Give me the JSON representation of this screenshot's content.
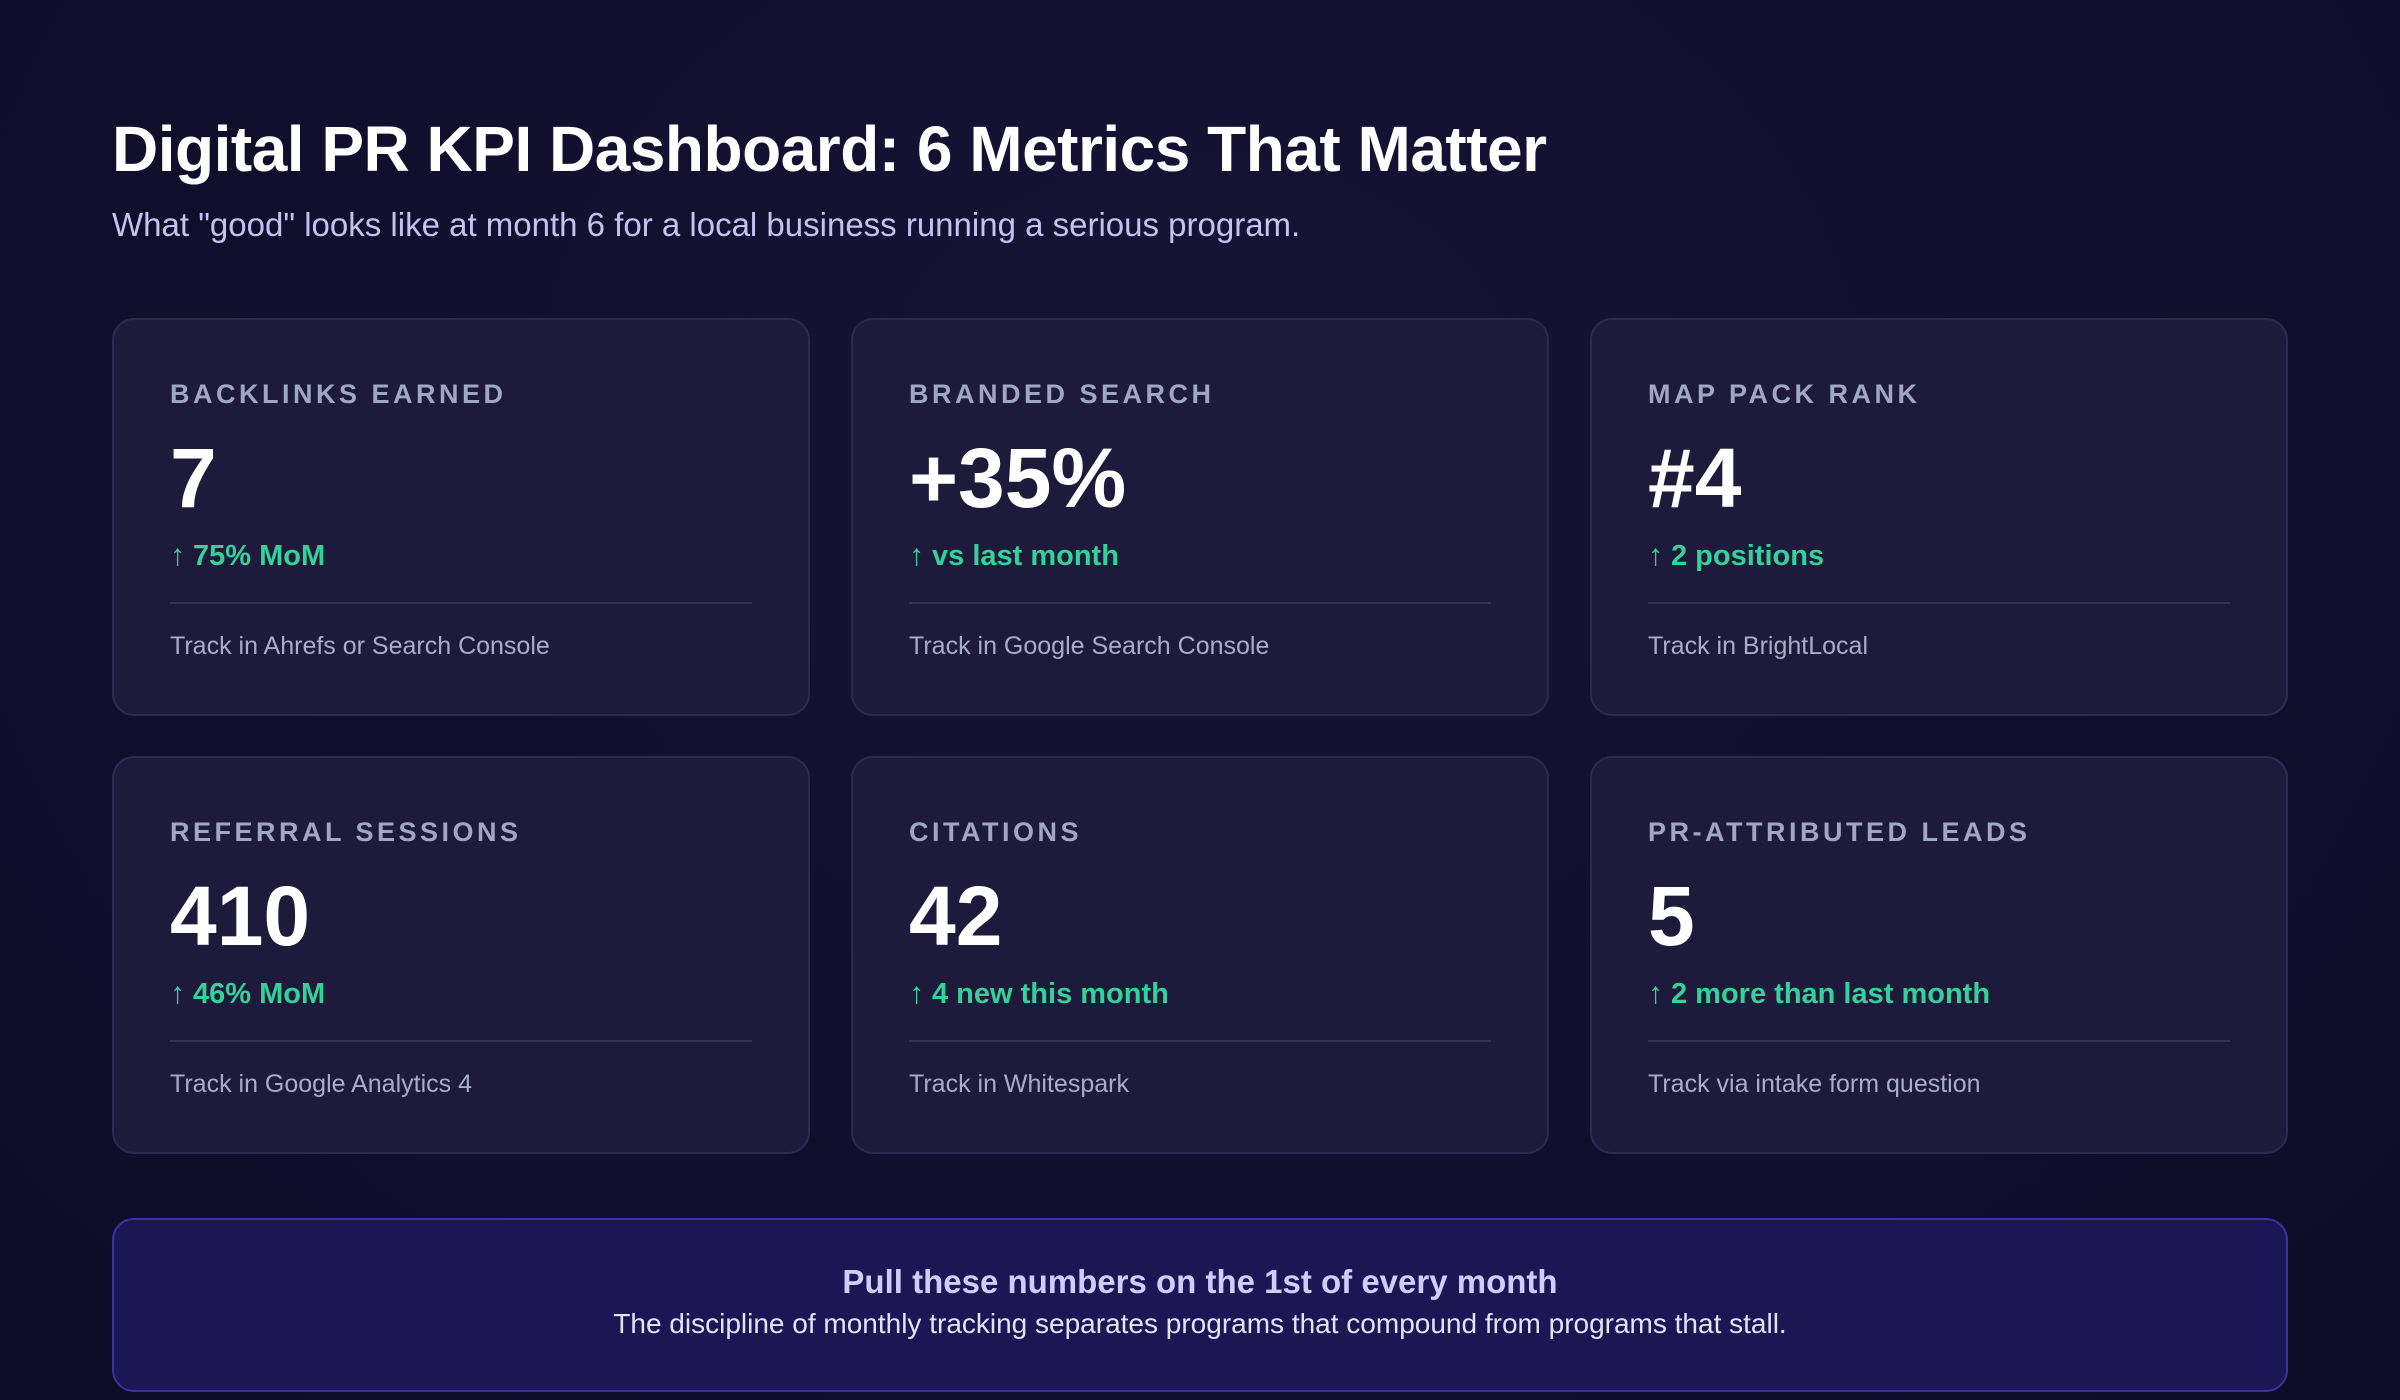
{
  "header": {
    "title": "Digital PR KPI Dashboard: 6 Metrics That Matter",
    "subtitle": "What \"good\" looks like at month 6 for a local business running a serious program."
  },
  "metrics": [
    {
      "label": "BACKLINKS EARNED",
      "value": "7",
      "trend": "75% MoM",
      "note": "Track in Ahrefs or Search Console"
    },
    {
      "label": "BRANDED SEARCH",
      "value": "+35%",
      "trend": "vs last month",
      "note": "Track in Google Search Console"
    },
    {
      "label": "MAP PACK RANK",
      "value": "#4",
      "trend": "2 positions",
      "note": "Track in BrightLocal"
    },
    {
      "label": "REFERRAL SESSIONS",
      "value": "410",
      "trend": "46% MoM",
      "note": "Track in Google Analytics 4"
    },
    {
      "label": "CITATIONS",
      "value": "42",
      "trend": "4 new this month",
      "note": "Track in Whitespark"
    },
    {
      "label": "PR-ATTRIBUTED LEADS",
      "value": "5",
      "trend": "2 more than last month",
      "note": "Track via intake form question"
    }
  ],
  "icons": {
    "trend": "arrow-up-icon"
  },
  "banner": {
    "title": "Pull these numbers on the 1st of every month",
    "text": "The discipline of monthly tracking separates programs that compound from programs that stall."
  },
  "colors": {
    "background": "#120f2e",
    "card": "#1d1a3b",
    "trend_positive": "#35d199",
    "banner": "#1c1654"
  }
}
